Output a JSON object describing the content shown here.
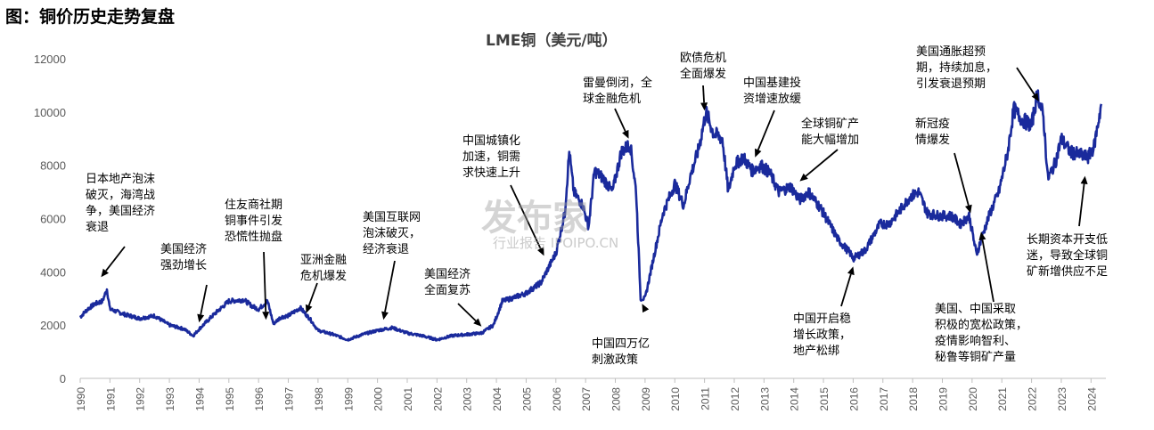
{
  "figure_title": "图：铜价历史走势复盘",
  "watermark": {
    "main": "发布家",
    "sub": "行业报告 IPOIPO.CN"
  },
  "chart_data": {
    "type": "line",
    "title": "LME铜（美元/吨）",
    "xlabel": "",
    "ylabel": "",
    "ylim": [
      0,
      12000
    ],
    "y_ticks": [
      0,
      2000,
      4000,
      6000,
      8000,
      10000,
      12000
    ],
    "x_ticks": [
      "1990",
      "1991",
      "1992",
      "1993",
      "1994",
      "1995",
      "1996",
      "1997",
      "1998",
      "1999",
      "2000",
      "2001",
      "2002",
      "2003",
      "2004",
      "2005",
      "2006",
      "2007",
      "2008",
      "2009",
      "2010",
      "2011",
      "2012",
      "2013",
      "2014",
      "2015",
      "2016",
      "2017",
      "2018",
      "2019",
      "2020",
      "2021",
      "2022",
      "2023",
      "2024"
    ],
    "xlim": [
      1990,
      2024.5
    ],
    "grid": false,
    "line_color": "#1a2a9c",
    "series": [
      {
        "x": [
          1990.0,
          1990.25,
          1990.5,
          1990.75,
          1990.9,
          1991.0,
          1991.5,
          1992.0,
          1992.5,
          1993.0,
          1993.5,
          1993.8,
          1994.0,
          1994.5,
          1995.0,
          1995.5,
          1995.8,
          1996.0,
          1996.3,
          1996.5,
          1996.75,
          1997.0,
          1997.4,
          1997.75,
          1998.0,
          1998.5,
          1999.0,
          1999.5,
          2000.0,
          2000.5,
          2001.0,
          2001.5,
          2002.0,
          2002.5,
          2003.0,
          2003.5,
          2003.9,
          2004.2,
          2004.5,
          2005.0,
          2005.5,
          2006.0,
          2006.3,
          2006.45,
          2006.6,
          2006.9,
          2007.1,
          2007.3,
          2007.6,
          2007.9,
          2008.2,
          2008.5,
          2008.7,
          2008.85,
          2009.0,
          2009.3,
          2009.6,
          2010.0,
          2010.3,
          2010.5,
          2010.8,
          2011.05,
          2011.3,
          2011.6,
          2011.8,
          2012.0,
          2012.3,
          2012.6,
          2012.9,
          2013.2,
          2013.5,
          2013.9,
          2014.2,
          2014.5,
          2014.9,
          2015.2,
          2015.5,
          2015.9,
          2016.0,
          2016.4,
          2016.9,
          2017.2,
          2017.5,
          2017.9,
          2018.2,
          2018.5,
          2018.9,
          2019.3,
          2019.6,
          2019.9,
          2020.15,
          2020.3,
          2020.6,
          2020.9,
          2021.2,
          2021.4,
          2021.7,
          2022.0,
          2022.2,
          2022.4,
          2022.55,
          2022.8,
          2023.0,
          2023.3,
          2023.6,
          2023.9,
          2024.1,
          2024.35
        ],
        "y": [
          2300,
          2600,
          2800,
          2900,
          3350,
          2600,
          2400,
          2250,
          2350,
          2000,
          1850,
          1600,
          1850,
          2400,
          2900,
          2950,
          2700,
          2600,
          2900,
          2050,
          2300,
          2350,
          2650,
          2200,
          1800,
          1650,
          1450,
          1650,
          1800,
          1900,
          1700,
          1600,
          1450,
          1600,
          1650,
          1700,
          2000,
          2900,
          3000,
          3200,
          3600,
          4700,
          6200,
          8500,
          7000,
          6500,
          5700,
          7800,
          7500,
          7000,
          8500,
          8800,
          7000,
          3000,
          3000,
          4600,
          6200,
          7300,
          6500,
          7500,
          8600,
          10000,
          9200,
          9000,
          7000,
          8000,
          8300,
          7800,
          8000,
          7700,
          7000,
          7200,
          6700,
          7000,
          6400,
          5800,
          5200,
          4700,
          4500,
          4800,
          5800,
          5800,
          6200,
          6800,
          7000,
          6200,
          6100,
          6100,
          5800,
          6100,
          4650,
          5200,
          6200,
          7000,
          8500,
          10100,
          9700,
          9500,
          10700,
          9800,
          7500,
          8100,
          9000,
          8500,
          8400,
          8300,
          8700,
          10300
        ]
      }
    ],
    "annotations": [
      {
        "text": "日本地产泡沫\n破灭，海湾战\n争，美国经济\n衰退",
        "x": 1990.7,
        "y": 3800
      },
      {
        "text": "美国经济\n强劲增长",
        "x": 1994.0,
        "y": 2100
      },
      {
        "text": "住友商社期\n铜事件引发\n恐慌性抛盘",
        "x": 1996.25,
        "y": 2200
      },
      {
        "text": "亚洲金融\n危机爆发",
        "x": 1997.6,
        "y": 2450
      },
      {
        "text": "美国互联网\n泡沫破灭，\n经济衰退",
        "x": 2000.2,
        "y": 2200
      },
      {
        "text": "美国经济\n全面复苏",
        "x": 2003.5,
        "y": 1950
      },
      {
        "text": "中国城镇化\n加速，铜需\n求快速上升",
        "x": 2005.6,
        "y": 4600
      },
      {
        "text": "雷曼倒闭，全\n球金融危机",
        "x": 2008.45,
        "y": 9000
      },
      {
        "text": "中国四万亿\n刺激政策",
        "x": 2008.9,
        "y": 2800
      },
      {
        "text": "欧债危机\n全面爆发",
        "x": 2011.0,
        "y": 10050
      },
      {
        "text": "中国基建投\n资增速放缓",
        "x": 2012.7,
        "y": 8300
      },
      {
        "text": "全球铜矿产\n能大幅增加",
        "x": 2014.2,
        "y": 7400
      },
      {
        "text": "中国开启稳\n增长政策，\n地产松绑",
        "x": 2016.0,
        "y": 4200
      },
      {
        "text": "新冠疫\n情爆发",
        "x": 2019.95,
        "y": 6200
      },
      {
        "text": "美国、中国采取\n积极的宽松政策，\n疫情影响智利、\n秘鲁等铜矿产量",
        "x": 2020.3,
        "y": 5500
      },
      {
        "text": "美国通胀超预\n期，持续加息，\n引发衰退预期",
        "x": 2022.25,
        "y": 10400
      },
      {
        "text": "长期资本开支低\n迷，导致全球铜\n矿新增供应不足",
        "x": 2023.8,
        "y": 7600
      }
    ]
  }
}
